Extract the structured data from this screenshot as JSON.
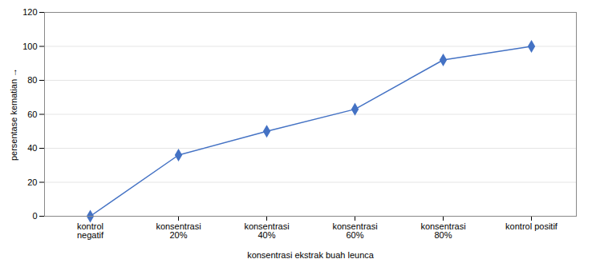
{
  "chart_data": {
    "type": "line",
    "categories": [
      "kontrol\nnegatif",
      "konsentrasi\n20%",
      "konsentrasi\n40%",
      "konsentrasi\n60%",
      "konsentrasi\n80%",
      "kontrol positif"
    ],
    "values": [
      0,
      36,
      50,
      63,
      92,
      100
    ],
    "color": "#4472C4",
    "marker": "diamond",
    "xlabel": "konsentrasi ekstrak buah leunca",
    "ylabel": "persentase kematian",
    "ylim": [
      0,
      120
    ],
    "yticks": [
      0,
      20,
      40,
      60,
      80,
      100,
      120
    ],
    "grid": true
  }
}
